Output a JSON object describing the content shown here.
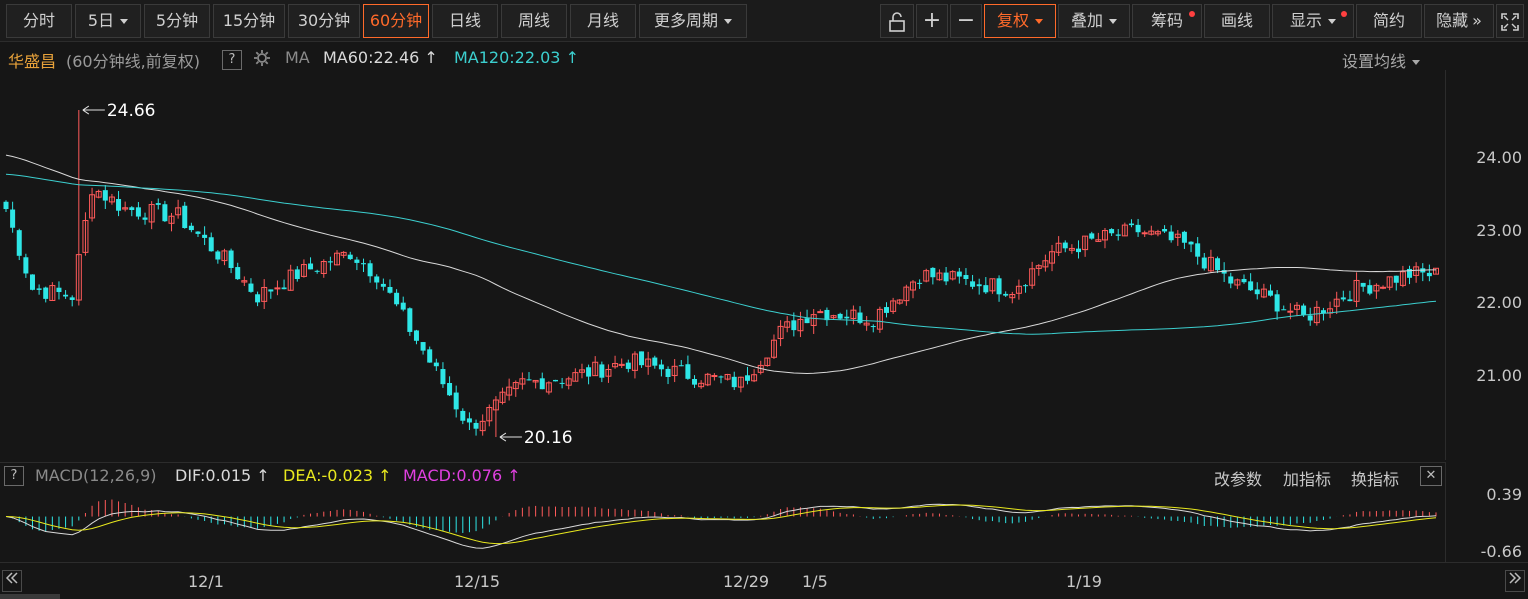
{
  "toolbar": {
    "periods": [
      "分时",
      "5日",
      "5分钟",
      "15分钟",
      "30分钟",
      "60分钟",
      "日线",
      "周线",
      "月线",
      "更多周期"
    ],
    "active_period": "60分钟",
    "tools": {
      "lock_icon": "lock-icon",
      "zoom_in": "+",
      "zoom_out": "−",
      "fuquan": "复权",
      "diejia": "叠加",
      "chouma": "筹码",
      "huaxian": "画线",
      "xianshi": "显示",
      "jianyue": "简约",
      "yincang": "隐藏",
      "collapse": "»",
      "fullscreen_icon": "fullscreen-icon"
    }
  },
  "legend": {
    "stock_name": "华盛昌",
    "period_desc": "(60分钟线,前复权)",
    "help": "?",
    "ma_label": "MA",
    "ma60": "MA60:22.46",
    "ma120": "MA120:22.03",
    "arrow": "↑",
    "settings": "设置均线"
  },
  "annotations": {
    "high": "24.66",
    "low": "20.16"
  },
  "price_axis": [
    "24.00",
    "23.00",
    "22.00",
    "21.00"
  ],
  "sub_legend": {
    "help": "?",
    "name": "MACD(12,26,9)",
    "dif": "DIF:0.015",
    "dea": "DEA:-0.023",
    "macd": "MACD:0.076",
    "arrow": "↑",
    "btn_params": "改参数",
    "btn_add": "加指标",
    "btn_swap": "换指标",
    "close": "✕"
  },
  "macd_axis": [
    "0.39",
    "-0.66"
  ],
  "date_axis": [
    "12/1",
    "12/15",
    "12/29",
    "1/5",
    "1/19"
  ],
  "colors": {
    "up": "#ff5a5a",
    "down": "#2ee6e6",
    "ma60": "#d9d9d9",
    "ma120": "#3ccfcf",
    "dea": "#e8e81e",
    "macd": "#e040e0",
    "accent": "#ff6a2a"
  },
  "chart_data": {
    "type": "candlestick",
    "price_range": [
      20.0,
      25.0
    ],
    "anchors": [
      {
        "bar": 0,
        "close": 23.3
      },
      {
        "bar": 4,
        "close": 22.2
      },
      {
        "bar": 10,
        "close": 22.1
      },
      {
        "bar": 13,
        "close": 23.6
      },
      {
        "bar": 18,
        "close": 23.3
      },
      {
        "bar": 26,
        "close": 23.2
      },
      {
        "bar": 33,
        "close": 22.6
      },
      {
        "bar": 38,
        "close": 22.1
      },
      {
        "bar": 44,
        "close": 22.4
      },
      {
        "bar": 52,
        "close": 22.7
      },
      {
        "bar": 56,
        "close": 22.4
      },
      {
        "bar": 60,
        "close": 21.8
      },
      {
        "bar": 66,
        "close": 20.9
      },
      {
        "bar": 70,
        "close": 20.3
      },
      {
        "bar": 73,
        "close": 20.5
      },
      {
        "bar": 78,
        "close": 20.9
      },
      {
        "bar": 86,
        "close": 21.0
      },
      {
        "bar": 94,
        "close": 21.2
      },
      {
        "bar": 104,
        "close": 21.0
      },
      {
        "bar": 111,
        "close": 20.9
      },
      {
        "bar": 117,
        "close": 21.6
      },
      {
        "bar": 122,
        "close": 21.9
      },
      {
        "bar": 131,
        "close": 21.8
      },
      {
        "bar": 138,
        "close": 22.4
      },
      {
        "bar": 145,
        "close": 22.3
      },
      {
        "bar": 152,
        "close": 22.2
      },
      {
        "bar": 158,
        "close": 22.7
      },
      {
        "bar": 166,
        "close": 22.9
      },
      {
        "bar": 171,
        "close": 23.0
      },
      {
        "bar": 178,
        "close": 22.8
      },
      {
        "bar": 185,
        "close": 22.3
      },
      {
        "bar": 190,
        "close": 22.1
      },
      {
        "bar": 196,
        "close": 21.8
      },
      {
        "bar": 204,
        "close": 22.2
      },
      {
        "bar": 212,
        "close": 22.4
      },
      {
        "bar": 216,
        "close": 22.4
      }
    ],
    "high_point": {
      "bar": 11,
      "value": 24.66
    },
    "low_point": {
      "bar": 74,
      "value": 20.16
    },
    "ma60_last": 22.46,
    "ma120_last": 22.03,
    "dif_last": 0.015,
    "dea_last": -0.023,
    "macd_last": 0.076,
    "macd_range": [
      -0.66,
      0.39
    ]
  }
}
